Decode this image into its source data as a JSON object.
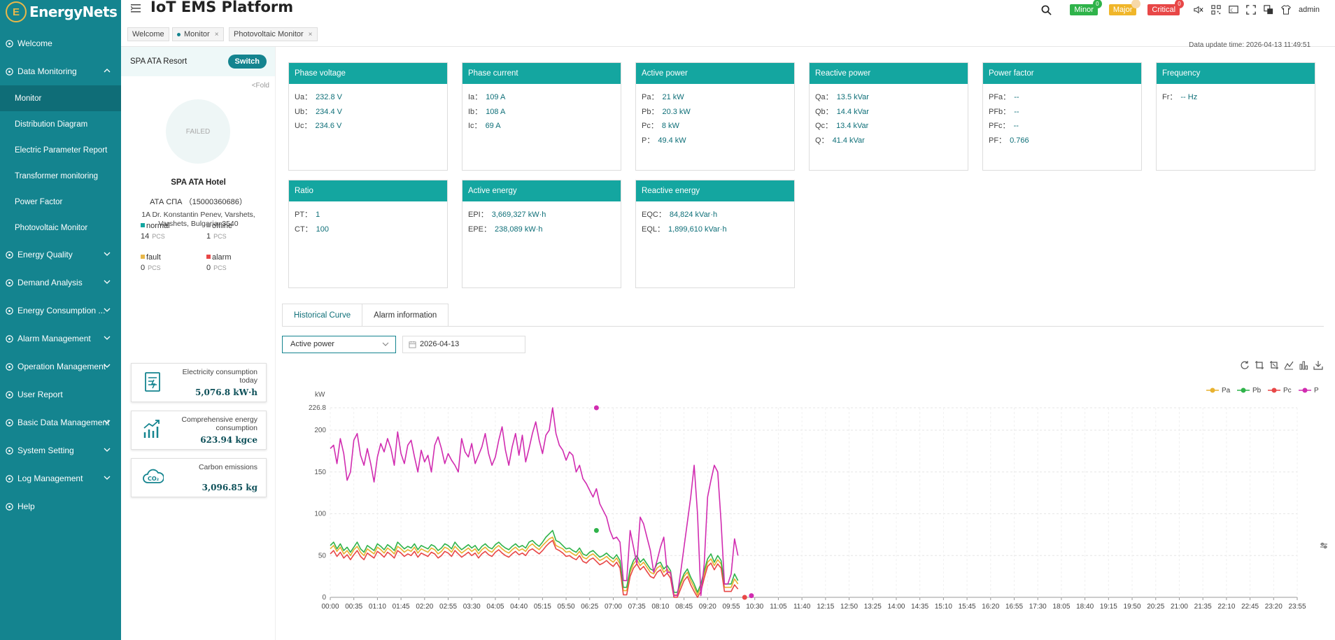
{
  "app": {
    "logo_text": "EnergyNets",
    "title": "IoT EMS Platform",
    "user": "admin",
    "badges": [
      {
        "label": "Minor",
        "count": "0",
        "color": "#2fb34a"
      },
      {
        "label": "Major",
        "count": "",
        "color": "#f0b62a"
      },
      {
        "label": "Critical",
        "count": "0",
        "color": "#e84747"
      }
    ]
  },
  "sidebar": {
    "items": [
      {
        "label": "Welcome",
        "icon": "welcome-icon"
      },
      {
        "label": "Data Monitoring",
        "icon": "data-monitoring-icon",
        "expanded": true
      },
      {
        "label": "Energy Quality",
        "icon": "energy-quality-icon"
      },
      {
        "label": "Demand Analysis",
        "icon": "demand-analysis-icon"
      },
      {
        "label": "Energy Consumption ...",
        "icon": "energy-consumption-icon"
      },
      {
        "label": "Alarm Management",
        "icon": "alarm-management-icon"
      },
      {
        "label": "Operation Management",
        "icon": "operation-management-icon"
      },
      {
        "label": "User Report",
        "icon": "user-report-icon"
      },
      {
        "label": "Basic Data Management",
        "icon": "basic-data-icon"
      },
      {
        "label": "System Setting",
        "icon": "system-setting-icon"
      },
      {
        "label": "Log Management",
        "icon": "log-management-icon"
      },
      {
        "label": "Help",
        "icon": "help-icon"
      }
    ],
    "subitems": [
      "Monitor",
      "Distribution Diagram",
      "Electric Parameter Report",
      "Transformer monitoring",
      "Power Factor",
      "Photovoltaic Monitor"
    ]
  },
  "tabs": [
    {
      "label": "Welcome"
    },
    {
      "label": "Monitor"
    },
    {
      "label": "Photovoltaic Monitor"
    }
  ],
  "site": {
    "name": "SPA ATA Resort",
    "switch_label": "Switch",
    "fold_label": "<Fold",
    "image_text": "FAILED",
    "hotel_name": "SPA ATA Hotel",
    "hotel_id": "АТА СПА （15000360686）",
    "address": "1A Dr. Konstantin Penev, Varshets, Varshets, Bulgaria, 3540",
    "stats": [
      {
        "label": "normal",
        "value": "14",
        "unit": "PCS",
        "color": "#14a6a0"
      },
      {
        "label": "offline",
        "value": "1",
        "unit": "PCS",
        "color": "#999999"
      },
      {
        "label": "fault",
        "value": "0",
        "unit": "PCS",
        "color": "#e8b84a"
      },
      {
        "label": "alarm",
        "value": "0",
        "unit": "PCS",
        "color": "#e84747"
      }
    ],
    "cards": [
      {
        "label": "Electricity consumption today",
        "value": "5,076.8 kW·h",
        "icon": "electricity-bill-icon"
      },
      {
        "label": "Comprehensive energy consumption",
        "value": "623.94 kgce",
        "icon": "energy-trend-icon"
      },
      {
        "label": "Carbon emissions",
        "value": "3,096.85 kg",
        "icon": "co2-cloud-icon"
      }
    ]
  },
  "update_time": "Data update time: 2026-04-13 11:49:51",
  "panels": [
    {
      "title": "Phase voltage",
      "rows": [
        {
          "k": "Ua：",
          "v": "232.8 V"
        },
        {
          "k": "Ub：",
          "v": "234.4 V"
        },
        {
          "k": "Uc：",
          "v": "234.6 V"
        }
      ]
    },
    {
      "title": "Phase current",
      "rows": [
        {
          "k": "Ia：",
          "v": "109 A"
        },
        {
          "k": "Ib：",
          "v": "108 A"
        },
        {
          "k": "Ic：",
          "v": "69 A"
        }
      ]
    },
    {
      "title": "Active power",
      "rows": [
        {
          "k": "Pa：",
          "v": "21 kW"
        },
        {
          "k": "Pb：",
          "v": "20.3 kW"
        },
        {
          "k": "Pc：",
          "v": "8 kW"
        },
        {
          "k": "P：",
          "v": "49.4 kW"
        }
      ]
    },
    {
      "title": "Reactive power",
      "rows": [
        {
          "k": "Qa：",
          "v": "13.5 kVar"
        },
        {
          "k": "Qb：",
          "v": "14.4 kVar"
        },
        {
          "k": "Qc：",
          "v": "13.4 kVar"
        },
        {
          "k": "Q：",
          "v": "41.4 kVar"
        }
      ]
    },
    {
      "title": "Power factor",
      "rows": [
        {
          "k": "PFa：",
          "v": "--"
        },
        {
          "k": "PFb：",
          "v": "--"
        },
        {
          "k": "PFc：",
          "v": "--"
        },
        {
          "k": "PF：",
          "v": "0.766"
        }
      ]
    },
    {
      "title": "Frequency",
      "rows": [
        {
          "k": "Fr：",
          "v": "-- Hz"
        }
      ]
    },
    {
      "title": "Ratio",
      "rows": [
        {
          "k": "PT：",
          "v": "1"
        },
        {
          "k": "CT：",
          "v": "100"
        }
      ]
    },
    {
      "title": "Active energy",
      "rows": [
        {
          "k": "EPI：",
          "v": "3,669,327 kW·h"
        },
        {
          "k": "EPE：",
          "v": "238,089 kW·h"
        }
      ]
    },
    {
      "title": "Reactive energy",
      "rows": [
        {
          "k": "EQC：",
          "v": "84,824 kVar·h"
        },
        {
          "k": "EQL：",
          "v": "1,899,610 kVar·h"
        }
      ]
    }
  ],
  "history": {
    "tabs": [
      "Historical Curve",
      "Alarm information"
    ],
    "select_value": "Active power",
    "date_value": "2026-04-13"
  },
  "chart_data": {
    "type": "line",
    "ylabel": "kW",
    "ylim": [
      0,
      226.8
    ],
    "yticks": [
      0,
      50,
      100,
      150,
      200,
      226.8
    ],
    "x_step_minutes": 5,
    "x_start": "00:00",
    "x_end": "23:55",
    "x_tick_labels": [
      "00:00",
      "00:35",
      "01:10",
      "01:45",
      "02:20",
      "02:55",
      "03:30",
      "04:05",
      "04:40",
      "05:15",
      "05:50",
      "06:25",
      "07:00",
      "07:35",
      "08:10",
      "08:45",
      "09:20",
      "09:55",
      "10:30",
      "11:05",
      "11:40",
      "12:15",
      "12:50",
      "13:25",
      "14:00",
      "14:35",
      "15:10",
      "15:45",
      "16:20",
      "16:55",
      "17:30",
      "18:05",
      "18:40",
      "19:15",
      "19:50",
      "20:25",
      "21:00",
      "21:35",
      "22:10",
      "22:45",
      "23:20",
      "23:55"
    ],
    "grid": true,
    "legend_position": "top-right",
    "series": [
      {
        "name": "Pa",
        "color": "#e8b230",
        "values": [
          58,
          62,
          55,
          60,
          52,
          56,
          50,
          57,
          61,
          54,
          50,
          58,
          55,
          52,
          60,
          57,
          53,
          59,
          56,
          52,
          61,
          58,
          54,
          57,
          55,
          60,
          53,
          58,
          56,
          54,
          59,
          57,
          52,
          55,
          60,
          58,
          54,
          61,
          57,
          53,
          56,
          59,
          55,
          58,
          52,
          57,
          60,
          56,
          54,
          59,
          62,
          58,
          55,
          53,
          57,
          60,
          56,
          58,
          55,
          61,
          64,
          60,
          57,
          62,
          66,
          70,
          72,
          62,
          60,
          58,
          54,
          55,
          52,
          50,
          55,
          48,
          46,
          50,
          52,
          48,
          44,
          46,
          49,
          45,
          42,
          47,
          40,
          8,
          8,
          30,
          40,
          45,
          38,
          42,
          36,
          30,
          28,
          35,
          38,
          30,
          34,
          28,
          3,
          3,
          15,
          25,
          30,
          20,
          12,
          3,
          12,
          28,
          42,
          46,
          38,
          45,
          40,
          12,
          12,
          12,
          22,
          16
        ]
      },
      {
        "name": "Pb",
        "color": "#2fb34a",
        "values": [
          62,
          66,
          58,
          64,
          56,
          60,
          54,
          60,
          66,
          58,
          54,
          62,
          59,
          56,
          64,
          61,
          57,
          63,
          60,
          56,
          66,
          62,
          58,
          61,
          59,
          64,
          57,
          62,
          60,
          58,
          63,
          61,
          56,
          59,
          64,
          62,
          58,
          66,
          61,
          57,
          60,
          63,
          59,
          62,
          56,
          61,
          64,
          60,
          58,
          63,
          66,
          62,
          59,
          57,
          61,
          64,
          60,
          62,
          59,
          66,
          68,
          64,
          61,
          66,
          72,
          76,
          80,
          68,
          66,
          62,
          58,
          59,
          56,
          54,
          59,
          52,
          50,
          54,
          56,
          52,
          48,
          50,
          53,
          49,
          46,
          51,
          44,
          12,
          12,
          34,
          44,
          50,
          42,
          46,
          40,
          34,
          32,
          40,
          42,
          34,
          38,
          32,
          6,
          6,
          18,
          28,
          34,
          24,
          16,
          6,
          16,
          32,
          46,
          52,
          42,
          50,
          44,
          16,
          16,
          16,
          28,
          20
        ]
      },
      {
        "name": "Pc",
        "color": "#e84747",
        "values": [
          52,
          56,
          49,
          54,
          47,
          51,
          45,
          51,
          56,
          49,
          45,
          53,
          50,
          47,
          55,
          52,
          48,
          54,
          51,
          47,
          56,
          53,
          49,
          52,
          50,
          55,
          48,
          53,
          51,
          49,
          54,
          52,
          47,
          50,
          55,
          53,
          49,
          56,
          52,
          48,
          51,
          54,
          50,
          53,
          47,
          52,
          55,
          51,
          49,
          54,
          57,
          53,
          50,
          48,
          52,
          55,
          51,
          53,
          50,
          56,
          58,
          55,
          52,
          56,
          61,
          65,
          68,
          58,
          56,
          53,
          49,
          50,
          47,
          45,
          50,
          43,
          41,
          45,
          47,
          43,
          39,
          41,
          44,
          40,
          37,
          42,
          35,
          3,
          3,
          25,
          35,
          40,
          33,
          37,
          31,
          25,
          23,
          30,
          33,
          25,
          29,
          23,
          0,
          0,
          10,
          20,
          25,
          15,
          7,
          0,
          7,
          23,
          37,
          41,
          33,
          40,
          35,
          7,
          7,
          7,
          15,
          10
        ]
      },
      {
        "name": "P",
        "color": "#d12cb0",
        "values": [
          178,
          182,
          160,
          190,
          172,
          140,
          150,
          188,
          196,
          170,
          158,
          178,
          160,
          138,
          168,
          184,
          174,
          190,
          178,
          158,
          198,
          172,
          160,
          182,
          188,
          168,
          150,
          176,
          162,
          170,
          150,
          182,
          192,
          178,
          160,
          172,
          164,
          158,
          150,
          190,
          174,
          168,
          184,
          160,
          170,
          180,
          196,
          172,
          158,
          168,
          188,
          204,
          176,
          158,
          180,
          196,
          170,
          194,
          162,
          178,
          196,
          210,
          188,
          172,
          194,
          200,
          226.8,
          196,
          182,
          176,
          164,
          174,
          170,
          150,
          158,
          142,
          136,
          128,
          120,
          130,
          112,
          104,
          96,
          80,
          70,
          72,
          66,
          20,
          20,
          80,
          60,
          40,
          96,
          88,
          72,
          56,
          30,
          44,
          60,
          72,
          30,
          30,
          2,
          2,
          30,
          60,
          90,
          120,
          158,
          100,
          2,
          40,
          120,
          140,
          158,
          150,
          90,
          16,
          16,
          28,
          70,
          50
        ]
      }
    ],
    "highlight_markers": [
      {
        "series": "P",
        "time": "06:35",
        "value": 226.8
      },
      {
        "series": "Pb",
        "time": "06:35",
        "value": 80
      },
      {
        "series": "Pc",
        "time": "10:15",
        "value": 0
      },
      {
        "series": "P",
        "time": "10:25",
        "value": 2
      }
    ]
  }
}
